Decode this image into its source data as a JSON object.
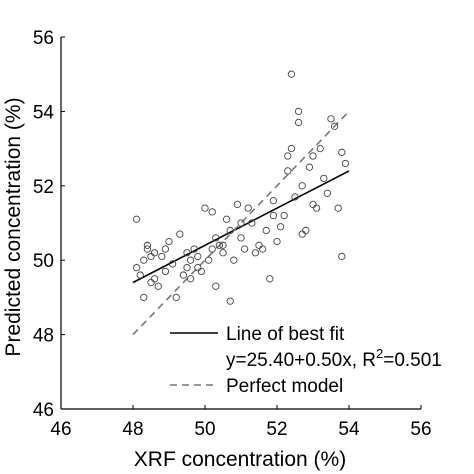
{
  "chart_data": {
    "type": "scatter",
    "xlabel": "XRF concentration (%)",
    "ylabel": "Predicted concentration (%)",
    "xlim": [
      46,
      56
    ],
    "ylim": [
      46,
      56
    ],
    "xticks": [
      "46",
      "48",
      "50",
      "52",
      "54",
      "56"
    ],
    "yticks": [
      "46",
      "48",
      "50",
      "52",
      "54",
      "56"
    ],
    "grid": false,
    "legend_position": "bottom-right",
    "colors": {
      "points": "#444444",
      "fit_line": "#000000",
      "perfect_line": "#777777",
      "axis": "#000000"
    },
    "series": [
      {
        "name": "",
        "kind": "scatter",
        "points": [
          [
            48.1,
            51.1
          ],
          [
            48.1,
            49.8
          ],
          [
            48.2,
            49.6
          ],
          [
            48.3,
            50.0
          ],
          [
            48.3,
            49.0
          ],
          [
            48.4,
            50.3
          ],
          [
            48.4,
            50.4
          ],
          [
            48.5,
            49.4
          ],
          [
            48.5,
            50.1
          ],
          [
            48.6,
            50.2
          ],
          [
            48.6,
            49.5
          ],
          [
            48.7,
            49.3
          ],
          [
            48.8,
            50.1
          ],
          [
            48.9,
            50.3
          ],
          [
            49.0,
            50.5
          ],
          [
            49.1,
            49.9
          ],
          [
            49.2,
            49.0
          ],
          [
            49.3,
            50.7
          ],
          [
            49.4,
            49.6
          ],
          [
            49.5,
            50.2
          ],
          [
            49.6,
            50.0
          ],
          [
            49.6,
            49.5
          ],
          [
            49.7,
            50.3
          ],
          [
            49.8,
            49.8
          ],
          [
            49.8,
            50.1
          ],
          [
            49.9,
            49.7
          ],
          [
            50.0,
            51.4
          ],
          [
            50.1,
            50.0
          ],
          [
            50.2,
            51.3
          ],
          [
            50.2,
            50.3
          ],
          [
            50.3,
            50.6
          ],
          [
            50.3,
            49.3
          ],
          [
            50.4,
            50.4
          ],
          [
            50.5,
            50.2
          ],
          [
            50.6,
            51.1
          ],
          [
            50.7,
            50.8
          ],
          [
            50.7,
            48.9
          ],
          [
            50.8,
            50.0
          ],
          [
            50.9,
            51.5
          ],
          [
            51.0,
            50.6
          ],
          [
            51.0,
            51.0
          ],
          [
            51.1,
            50.3
          ],
          [
            51.2,
            51.4
          ],
          [
            51.3,
            51.0
          ],
          [
            51.4,
            50.2
          ],
          [
            51.5,
            50.4
          ],
          [
            51.6,
            50.3
          ],
          [
            51.7,
            50.8
          ],
          [
            51.8,
            49.5
          ],
          [
            51.9,
            51.6
          ],
          [
            52.0,
            50.5
          ],
          [
            52.1,
            50.9
          ],
          [
            52.2,
            51.2
          ],
          [
            52.3,
            52.8
          ],
          [
            52.4,
            53.0
          ],
          [
            52.4,
            55.0
          ],
          [
            52.5,
            51.7
          ],
          [
            52.6,
            53.7
          ],
          [
            52.6,
            54.0
          ],
          [
            52.7,
            52.0
          ],
          [
            52.8,
            50.8
          ],
          [
            52.9,
            52.5
          ],
          [
            53.0,
            51.5
          ],
          [
            53.0,
            52.8
          ],
          [
            53.1,
            51.4
          ],
          [
            53.2,
            53.0
          ],
          [
            53.3,
            52.2
          ],
          [
            53.4,
            51.8
          ],
          [
            53.5,
            53.8
          ],
          [
            53.6,
            53.6
          ],
          [
            53.7,
            51.4
          ],
          [
            53.8,
            52.9
          ],
          [
            53.8,
            50.1
          ],
          [
            53.9,
            52.6
          ],
          [
            52.7,
            50.7
          ],
          [
            51.9,
            51.2
          ],
          [
            52.3,
            52.4
          ],
          [
            50.5,
            50.4
          ],
          [
            49.5,
            49.8
          ],
          [
            48.9,
            49.7
          ]
        ]
      },
      {
        "name": "Line of best fit",
        "kind": "line",
        "style": "solid",
        "x": [
          48,
          54
        ],
        "y": [
          49.4,
          52.4
        ]
      },
      {
        "name": "Perfect model",
        "kind": "line",
        "style": "dashed",
        "x": [
          48,
          54
        ],
        "y": [
          48,
          54
        ]
      }
    ],
    "legend": {
      "fit_label": "Line of best fit",
      "fit_equation": "y=25.40+0.50x, R",
      "fit_equation_sup": "2",
      "fit_equation_tail": "=0.501",
      "perfect_label": "Perfect model"
    }
  }
}
